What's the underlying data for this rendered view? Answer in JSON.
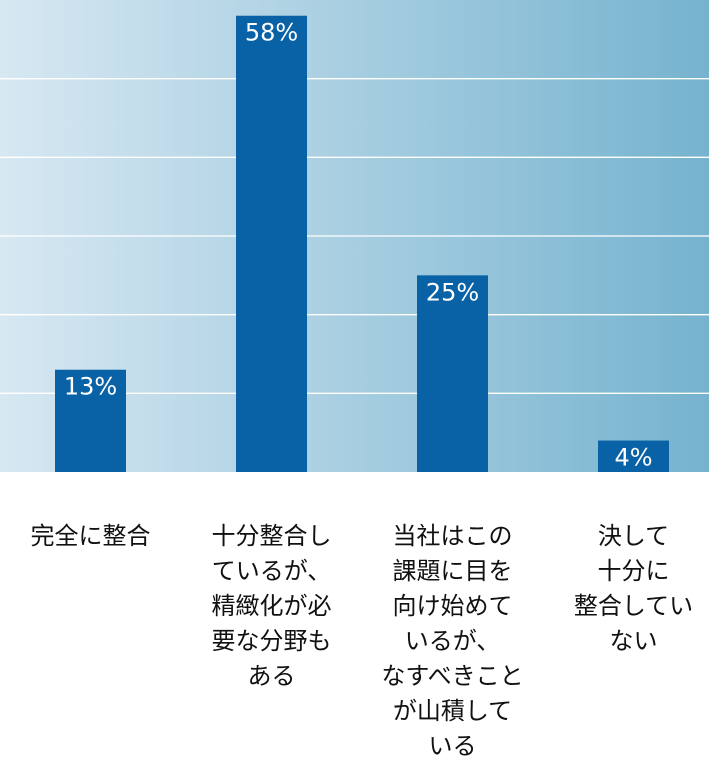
{
  "chart_data": {
    "type": "bar",
    "categories": [
      "完全に整合",
      "十分整合し\nているが、\n精緻化が必\n要な分野も\nある",
      "当社はこの\n課題に目を\n向け始めて\nいるが、\nなすべきこと\nが山積して\nいる",
      "決して\n十分に\n整合してい\nない"
    ],
    "values": [
      13,
      58,
      25,
      4
    ],
    "data_labels": [
      "13%",
      "58%",
      "25%",
      "4%"
    ],
    "ylim": [
      0,
      60
    ],
    "grid": true,
    "title": "",
    "xlabel": "",
    "ylabel": ""
  },
  "colors": {
    "bar": "#0a62a6",
    "gradient_left": "#d7e8f2",
    "gradient_right": "#76b3cf",
    "grid": "#ffffff",
    "label_text": "#ffffff"
  }
}
